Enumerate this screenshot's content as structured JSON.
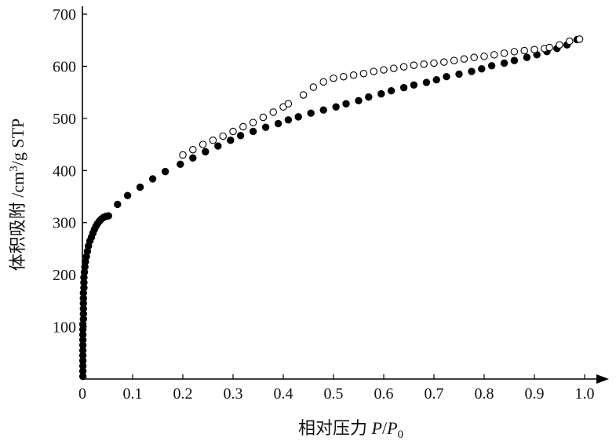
{
  "chart_data": {
    "type": "scatter",
    "xlabel_prefix": "相对压力 ",
    "xlabel_var": "P",
    "xlabel_sep": "/",
    "xlabel_var2": "P",
    "xlabel_sub": "0",
    "ylabel_prefix": "体积吸附 /cm",
    "ylabel_sup": "3",
    "ylabel_suffix": "/g STP",
    "xlim": [
      0,
      1.0
    ],
    "ylim": [
      0,
      700
    ],
    "xticks": [
      "0",
      "0.1",
      "0.2",
      "0.3",
      "0.4",
      "0.5",
      "0.6",
      "0.7",
      "0.8",
      "0.9",
      "1.0"
    ],
    "yticks": [
      "100",
      "200",
      "300",
      "400",
      "500",
      "600",
      "700"
    ],
    "series": [
      {
        "marker": "filled-circle",
        "color": "#000000",
        "x": [
          0.001,
          0.001,
          0.001,
          0.001,
          0.001,
          0.001,
          0.001,
          0.001,
          0.001,
          0.001,
          0.001,
          0.002,
          0.002,
          0.002,
          0.002,
          0.002,
          0.002,
          0.003,
          0.003,
          0.003,
          0.004,
          0.005,
          0.006,
          0.008,
          0.01,
          0.012,
          0.015,
          0.018,
          0.021,
          0.024,
          0.027,
          0.03,
          0.034,
          0.038,
          0.042,
          0.047,
          0.052,
          0.07,
          0.09,
          0.115,
          0.14,
          0.165,
          0.195,
          0.22,
          0.245,
          0.27,
          0.295,
          0.315,
          0.34,
          0.365,
          0.39,
          0.41,
          0.43,
          0.455,
          0.48,
          0.505,
          0.525,
          0.55,
          0.57,
          0.595,
          0.615,
          0.64,
          0.66,
          0.685,
          0.705,
          0.725,
          0.75,
          0.775,
          0.795,
          0.815,
          0.84,
          0.86,
          0.885,
          0.905,
          0.925,
          0.945,
          0.965,
          0.985
        ],
        "y": [
          5,
          15,
          25,
          35,
          45,
          55,
          65,
          75,
          85,
          95,
          105,
          115,
          125,
          135,
          145,
          155,
          165,
          175,
          185,
          195,
          205,
          215,
          225,
          235,
          245,
          255,
          265,
          272,
          280,
          287,
          293,
          298,
          303,
          307,
          310,
          312,
          313,
          335,
          352,
          368,
          384,
          398,
          412,
          424,
          436,
          447,
          458,
          467,
          475,
          483,
          490,
          497,
          503,
          510,
          516,
          522,
          528,
          534,
          541,
          547,
          553,
          559,
          564,
          569,
          574,
          580,
          585,
          590,
          595,
          601,
          606,
          611,
          617,
          622,
          628,
          634,
          641,
          651
        ]
      },
      {
        "marker": "open-circle",
        "color": "#000000",
        "x": [
          0.2,
          0.22,
          0.24,
          0.26,
          0.28,
          0.3,
          0.32,
          0.34,
          0.36,
          0.38,
          0.4,
          0.41,
          0.44,
          0.46,
          0.48,
          0.5,
          0.52,
          0.54,
          0.56,
          0.58,
          0.6,
          0.62,
          0.64,
          0.66,
          0.68,
          0.7,
          0.72,
          0.74,
          0.76,
          0.78,
          0.8,
          0.82,
          0.84,
          0.86,
          0.88,
          0.9,
          0.92,
          0.93,
          0.95,
          0.97,
          0.99
        ],
        "y": [
          430,
          440,
          450,
          458,
          466,
          475,
          484,
          492,
          502,
          512,
          522,
          528,
          545,
          560,
          570,
          577,
          580,
          583,
          586,
          590,
          593,
          596,
          599,
          602,
          604,
          606,
          608,
          611,
          614,
          617,
          619,
          622,
          625,
          628,
          630,
          632,
          634,
          636,
          641,
          648,
          652
        ]
      }
    ]
  }
}
